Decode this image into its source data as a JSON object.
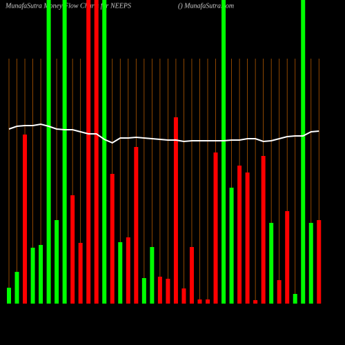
{
  "chart_data": {
    "type": "bar",
    "title": "MunafaSutra Money Flow Charts for NEEPS",
    "subtitle": "() MunafaSutra.com",
    "ylim": [
      0,
      440
    ],
    "grid": true,
    "grid_color": "#b35900",
    "series": [
      {
        "type": "bar",
        "values": [
          23,
          46,
          245,
          81,
          85,
          440,
          121,
          440,
          157,
          88,
          440,
          440,
          440,
          188,
          89,
          96,
          227,
          37,
          82,
          39,
          36,
          270,
          22,
          82,
          6,
          6,
          219,
          440,
          168,
          200,
          190,
          5,
          214,
          117,
          34,
          134,
          14,
          440,
          117,
          121
        ],
        "colors": [
          "#00ff00",
          "#00ff00",
          "#ff0000",
          "#00ff00",
          "#00ff00",
          "#00ff00",
          "#00ff00",
          "#00ff00",
          "#ff0000",
          "#ff0000",
          "#ff0000",
          "#ff0000",
          "#00ff00",
          "#ff0000",
          "#00ff00",
          "#ff0000",
          "#ff0000",
          "#00ff00",
          "#00ff00",
          "#ff0000",
          "#ff0000",
          "#ff0000",
          "#ff0000",
          "#ff0000",
          "#ff0000",
          "#ff0000",
          "#ff0000",
          "#00ff00",
          "#00ff00",
          "#ff0000",
          "#ff0000",
          "#ff0000",
          "#ff0000",
          "#00ff00",
          "#ff0000",
          "#ff0000",
          "#00ff00",
          "#00ff00",
          "#00ff00",
          "#ff0000"
        ]
      },
      {
        "type": "line",
        "color": "#ffffff",
        "values": [
          253,
          257,
          258,
          258,
          260,
          257,
          253,
          252,
          252,
          249,
          246,
          246,
          238,
          233,
          240,
          240,
          241,
          240,
          239,
          238,
          237,
          237,
          235,
          236,
          236,
          236,
          236,
          236,
          237,
          237,
          239,
          239,
          235,
          236,
          239,
          242,
          243,
          243,
          249,
          250
        ]
      }
    ]
  }
}
